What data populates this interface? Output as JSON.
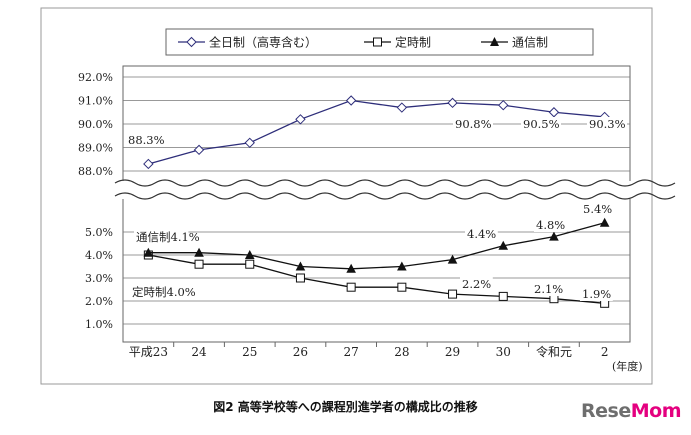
{
  "chart_data": {
    "type": "line",
    "categories": [
      "平成23",
      "24",
      "25",
      "26",
      "27",
      "28",
      "29",
      "30",
      "令和元",
      "2"
    ],
    "x_unit_label": "(年度)",
    "upper_axis": {
      "ticks": [
        "88.0%",
        "89.0%",
        "90.0%",
        "91.0%",
        "92.0%"
      ],
      "ylim": [
        88.0,
        92.0
      ]
    },
    "lower_axis": {
      "ticks": [
        "1.0%",
        "2.0%",
        "3.0%",
        "4.0%",
        "5.0%"
      ],
      "ylim": [
        1.0,
        5.0
      ]
    },
    "axis_break": true,
    "grid": true,
    "legend_position": "top",
    "series": [
      {
        "name": "全日制（高専含む）",
        "axis": "upper",
        "marker": "diamond",
        "values": [
          88.3,
          88.9,
          89.2,
          90.2,
          91.0,
          90.7,
          90.9,
          90.8,
          90.5,
          90.3
        ]
      },
      {
        "name": "定時制",
        "axis": "lower",
        "marker": "square",
        "values": [
          4.0,
          3.6,
          3.6,
          3.0,
          2.6,
          2.6,
          2.3,
          2.2,
          2.1,
          1.9
        ]
      },
      {
        "name": "通信制",
        "axis": "lower",
        "marker": "triangle",
        "values": [
          4.1,
          4.1,
          4.0,
          3.5,
          3.4,
          3.5,
          3.8,
          4.4,
          4.8,
          5.4
        ]
      }
    ],
    "annotations": [
      {
        "id": "ft-first",
        "text": "88.3%"
      },
      {
        "id": "ft-h30",
        "text": "90.8%"
      },
      {
        "id": "ft-r1",
        "text": "90.5%"
      },
      {
        "id": "ft-r2",
        "text": "90.3%"
      },
      {
        "id": "tsu-first",
        "text": "通信制4.1%"
      },
      {
        "id": "tsu-h30",
        "text": "4.4%"
      },
      {
        "id": "tsu-r1",
        "text": "4.8%"
      },
      {
        "id": "tsu-r2",
        "text": "5.4%"
      },
      {
        "id": "tei-first",
        "text": "定時制4.0%"
      },
      {
        "id": "tei-h30",
        "text": "2.2%"
      },
      {
        "id": "tei-r1",
        "text": "2.1%"
      },
      {
        "id": "tei-r2",
        "text": "1.9%"
      }
    ],
    "title": "図2  高等学校等への課程別進学者の構成比の推移"
  },
  "brand": {
    "logo_text": "ReseMom"
  }
}
